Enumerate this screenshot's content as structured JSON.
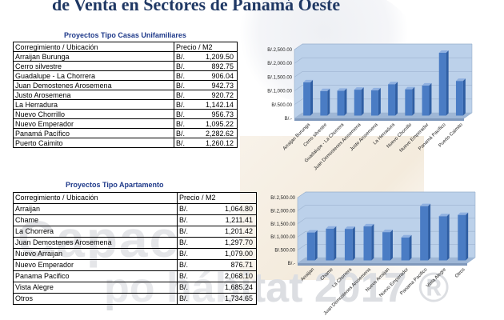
{
  "page_title": "de Venta en Sectores de Panamá Oeste",
  "watermark": {
    "line1": "Capac",
    "line2": "po hábitat 2017 ®"
  },
  "section1": {
    "title": "Proyectos Tipo Casas Unifamiliares",
    "header": {
      "location": "Corregimiento / Ubicación",
      "price": "Precio / M2"
    },
    "rows": [
      {
        "location": "Arraijan Burunga",
        "currency": "B/.",
        "price": "1,209.50"
      },
      {
        "location": "Cerro silvestre",
        "currency": "B/.",
        "price": "892.75"
      },
      {
        "location": "Guadalupe - La Chorrera",
        "currency": "B/.",
        "price": "906.04"
      },
      {
        "location": "Juan Demostenes Arosemena",
        "currency": "B/.",
        "price": "942.73"
      },
      {
        "location": "Justo Arosemena",
        "currency": "B/.",
        "price": "920.72"
      },
      {
        "location": "La Herradura",
        "currency": "B/.",
        "price": "1,142.14"
      },
      {
        "location": "Nuevo Chorrillo",
        "currency": "B/.",
        "price": "956.73"
      },
      {
        "location": "Nuevo Emperador",
        "currency": "B/.",
        "price": "1,095.22"
      },
      {
        "location": "Panamá Pacífico",
        "currency": "B/.",
        "price": "2,282.62"
      },
      {
        "location": "Puerto Caimito",
        "currency": "B/.",
        "price": "1,260.12"
      }
    ]
  },
  "section2": {
    "title": "Proyectos Tipo Apartamento",
    "header": {
      "location": "Corregimiento / Ubicación",
      "price": "Precio / M2"
    },
    "rows": [
      {
        "location": "Arraijan",
        "currency": "B/.",
        "price": "1,064.80"
      },
      {
        "location": "Chame",
        "currency": "B/.",
        "price": "1,211.41"
      },
      {
        "location": "La Chorrera",
        "currency": "B/.",
        "price": "1,201.42"
      },
      {
        "location": "Juan Demostenes Arosemena",
        "currency": "B/.",
        "price": "1,297.70"
      },
      {
        "location": "Nuevo Arraijan",
        "currency": "B/.",
        "price": "1,079.00"
      },
      {
        "location": "Nuevo Emperador",
        "currency": "B/.",
        "price": "876.71"
      },
      {
        "location": "Panama Pacifico",
        "currency": "B/.",
        "price": "2,068.10"
      },
      {
        "location": "Vista Alegre",
        "currency": "B/.",
        "price": "1,685.24"
      },
      {
        "location": "Otros",
        "currency": "B/.",
        "price": "1,734.65"
      }
    ]
  },
  "chart_data": [
    {
      "type": "bar",
      "categories": [
        "Arraijan Burunga",
        "Cerro silvestre",
        "Guadalupe - La Chorrera",
        "Juan Demostenes Arosemena",
        "Justo Arosemena",
        "La Herradura",
        "Nuevo Chorrillo",
        "Nuevo Emperador",
        "Panamá Pacífico",
        "Puerto Caimito"
      ],
      "values": [
        1209.5,
        892.75,
        906.04,
        942.73,
        920.72,
        1142.14,
        956.73,
        1095.22,
        2282.62,
        1260.12
      ],
      "ylim": [
        0,
        2500
      ],
      "yticks": [
        0,
        500,
        1000,
        1500,
        2000,
        2500
      ],
      "ytick_labels": [
        "B/.-",
        "B/.500.00",
        "B/.1,000.00",
        "B/.1,500.00",
        "B/.2,000.00",
        "B/.2,500.00"
      ],
      "grid": true,
      "bar_color": "#4a7cc4",
      "background_color": "#bcd1ea"
    },
    {
      "type": "bar",
      "categories": [
        "Arraijan",
        "Chame",
        "La Chorrera",
        "Juan Demostenes Arosemena",
        "Nuevo Arraijan",
        "Nuevo Emperador",
        "Panama Pacifico",
        "Vista Alegre",
        "Otros"
      ],
      "values": [
        1064.8,
        1211.41,
        1201.42,
        1297.7,
        1079.0,
        876.71,
        2068.1,
        1685.24,
        1734.65
      ],
      "ylim": [
        0,
        2500
      ],
      "yticks": [
        0,
        500,
        1000,
        1500,
        2000,
        2500
      ],
      "ytick_labels": [
        "B/.-",
        "B/.500.00",
        "B/.1,000.00",
        "B/.1,500.00",
        "B/.2,000.00",
        "B/.2,500.00"
      ],
      "grid": true,
      "bar_color": "#4a7cc4",
      "background_color": "#bcd1ea"
    }
  ]
}
